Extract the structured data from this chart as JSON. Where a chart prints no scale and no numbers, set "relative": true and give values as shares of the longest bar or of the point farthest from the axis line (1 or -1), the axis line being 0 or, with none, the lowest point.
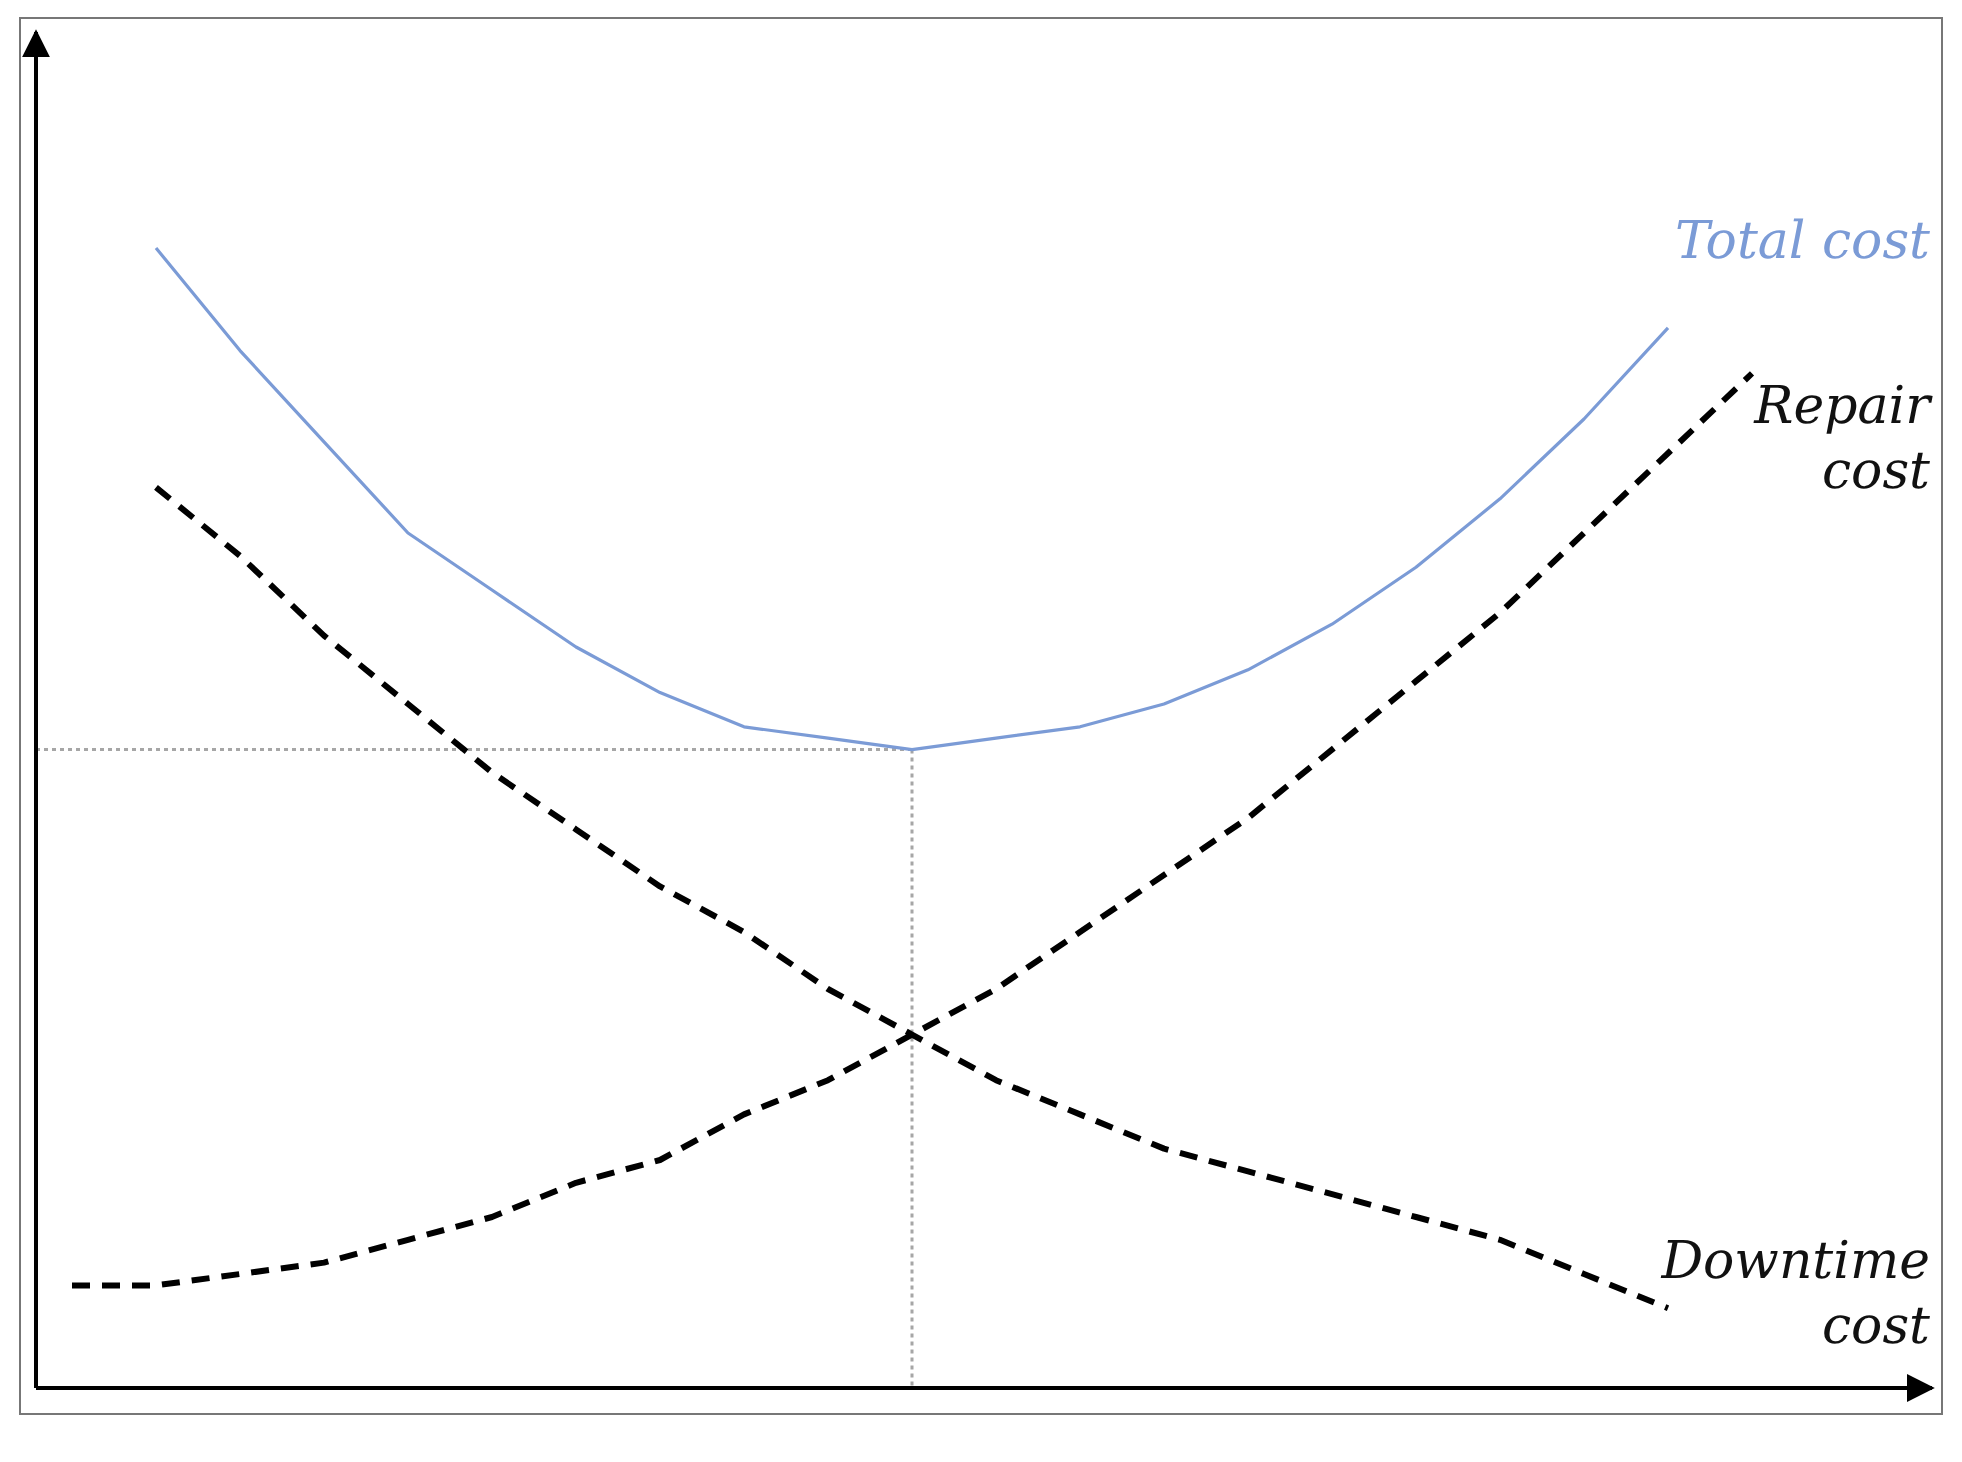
{
  "chart_data": {
    "type": "line",
    "relative": true,
    "categories": [
      null,
      null,
      null,
      null,
      null,
      null,
      null,
      null,
      null,
      null,
      null,
      null,
      null,
      null,
      null,
      null,
      null,
      null,
      null,
      null,
      null
    ],
    "series": [
      {
        "name": "Total cost",
        "color": "#7b9bd6",
        "line_style": "solid",
        "values": [
          null,
          1.0,
          0.91,
          0.83,
          0.75,
          0.7,
          0.65,
          0.61,
          0.58,
          0.57,
          0.56,
          0.57,
          0.58,
          0.6,
          0.63,
          0.67,
          0.72,
          0.78,
          0.85,
          0.93,
          null
        ]
      },
      {
        "name": "Repair cost",
        "color": "#000000",
        "line_style": "dashed",
        "values": [
          0.09,
          0.09,
          0.1,
          0.11,
          0.13,
          0.15,
          0.18,
          0.2,
          0.24,
          0.27,
          0.31,
          0.35,
          0.4,
          0.45,
          0.5,
          0.56,
          0.62,
          0.68,
          0.75,
          0.82,
          0.89
        ]
      },
      {
        "name": "Downtime cost",
        "color": "#000000",
        "line_style": "dashed",
        "values": [
          null,
          0.79,
          0.73,
          0.66,
          0.6,
          0.54,
          0.49,
          0.44,
          0.4,
          0.35,
          0.31,
          0.27,
          0.24,
          0.21,
          0.19,
          0.17,
          0.15,
          0.13,
          0.1,
          0.07,
          null
        ]
      }
    ],
    "ref_lines": [
      {
        "axis": "y",
        "value": 0.56,
        "color": "#a6a6a6",
        "line_style": "dotted"
      }
    ]
  }
}
